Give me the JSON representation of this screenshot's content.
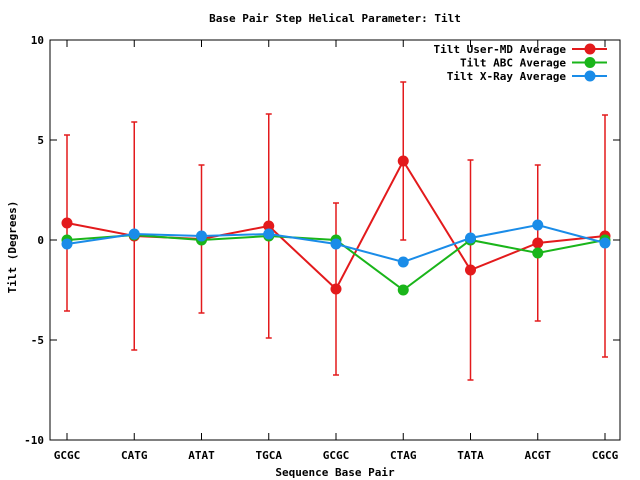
{
  "chart_data": {
    "type": "line",
    "title": "Base Pair Step Helical Parameter: Tilt",
    "xlabel": "Sequence Base Pair",
    "ylabel": "Tilt (Degrees)",
    "ylim": [
      -10,
      10
    ],
    "yticks": [
      -10,
      -5,
      0,
      5,
      10
    ],
    "grid": false,
    "legend_position": "top-right",
    "categories": [
      "GCGC",
      "CATG",
      "ATAT",
      "TGCA",
      "GCGC",
      "CTAG",
      "TATA",
      "ACGT",
      "CGCG"
    ],
    "series": [
      {
        "name": "Tilt User-MD Average",
        "color": "#e31a1c",
        "values": [
          0.85,
          0.2,
          0.05,
          0.7,
          -2.45,
          3.95,
          -1.5,
          -0.15,
          0.2
        ],
        "error": [
          4.4,
          5.7,
          3.7,
          5.6,
          4.3,
          3.95,
          5.5,
          3.9,
          6.05
        ]
      },
      {
        "name": "Tilt ABC Average",
        "color": "#1ab51a",
        "values": [
          0.0,
          0.25,
          0.0,
          0.2,
          0.0,
          -2.5,
          0.0,
          -0.65,
          0.0
        ]
      },
      {
        "name": "Tilt X-Ray Average",
        "color": "#1a8ce8",
        "values": [
          -0.2,
          0.3,
          0.2,
          0.3,
          -0.2,
          -1.1,
          0.1,
          0.75,
          -0.15
        ]
      }
    ]
  }
}
